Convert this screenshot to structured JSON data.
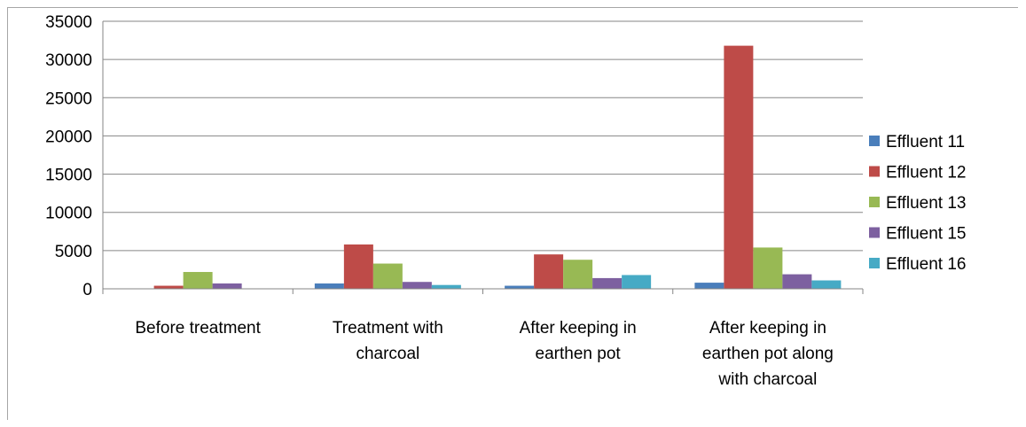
{
  "chart_data": {
    "type": "bar",
    "title": "",
    "xlabel": "",
    "ylabel": "",
    "ylim": [
      0,
      35000
    ],
    "yticks": [
      0,
      5000,
      10000,
      15000,
      20000,
      25000,
      30000,
      35000
    ],
    "grid": true,
    "legend_position": "right",
    "categories": [
      [
        "Before treatment"
      ],
      [
        "Treatment with",
        "charcoal"
      ],
      [
        "After keeping in",
        "earthen pot"
      ],
      [
        "After keeping in",
        "earthen pot along",
        "with charcoal"
      ]
    ],
    "series": [
      {
        "name": "Effluent 11",
        "color": "#4a7ebb",
        "values": [
          0,
          700,
          400,
          800
        ]
      },
      {
        "name": "Effluent 12",
        "color": "#be4b48",
        "values": [
          400,
          5800,
          4500,
          31800
        ]
      },
      {
        "name": "Effluent 13",
        "color": "#98b954",
        "values": [
          2200,
          3300,
          3800,
          5400
        ]
      },
      {
        "name": "Effluent 15",
        "color": "#7d60a0",
        "values": [
          700,
          900,
          1400,
          1900
        ]
      },
      {
        "name": "Effluent 16",
        "color": "#46aac5",
        "values": [
          0,
          500,
          1800,
          1100
        ]
      }
    ]
  }
}
